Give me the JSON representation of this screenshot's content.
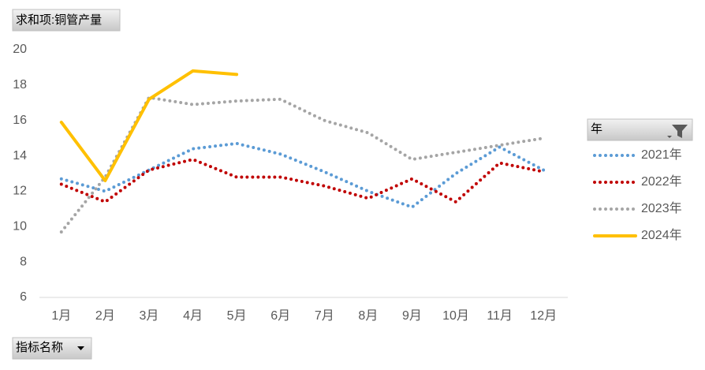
{
  "chart_data": {
    "type": "line",
    "title": "求和项:铜管产量",
    "legend_title": "年",
    "x_field": "指标名称",
    "categories": [
      "1月",
      "2月",
      "3月",
      "4月",
      "5月",
      "6月",
      "7月",
      "8月",
      "9月",
      "10月",
      "11月",
      "12月"
    ],
    "series": [
      {
        "name": "2021年",
        "color": "#5b9bd5",
        "dotted": true,
        "values": [
          12.7,
          12.0,
          13.2,
          14.4,
          14.7,
          14.1,
          13.1,
          12.0,
          11.1,
          13.0,
          14.5,
          13.2
        ]
      },
      {
        "name": "2022年",
        "color": "#c00000",
        "dotted": true,
        "values": [
          12.4,
          11.4,
          13.2,
          13.8,
          12.8,
          12.8,
          12.3,
          11.6,
          12.7,
          11.4,
          13.6,
          13.1
        ]
      },
      {
        "name": "2023年",
        "color": "#a5a5a5",
        "dotted": true,
        "values": [
          9.7,
          12.8,
          17.3,
          16.9,
          17.1,
          17.2,
          16.0,
          15.3,
          13.8,
          14.2,
          14.6,
          15.0
        ]
      },
      {
        "name": "2024年",
        "color": "#ffc000",
        "dotted": false,
        "values": [
          15.9,
          12.6,
          17.2,
          18.8,
          18.6,
          null,
          null,
          null,
          null,
          null,
          null,
          null
        ]
      }
    ],
    "ylim": [
      6,
      20
    ],
    "yticks": [
      6,
      8,
      10,
      12,
      14,
      16,
      18,
      20
    ],
    "grid": false,
    "legend": "right"
  }
}
